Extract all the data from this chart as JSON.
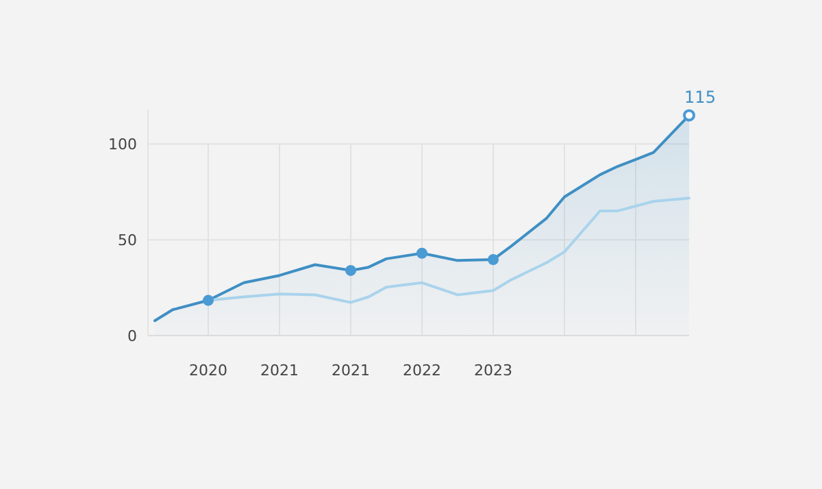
{
  "chart_data": {
    "type": "line",
    "ylim": [
      0,
      118
    ],
    "categories": [
      null,
      null,
      null,
      "2020",
      null,
      null,
      null,
      "2021",
      null,
      null,
      null,
      "2021",
      null,
      null,
      null,
      "2022",
      null,
      null,
      null,
      "2023",
      null,
      null,
      null,
      null,
      null,
      null,
      null,
      null,
      null,
      null,
      null
    ],
    "yticks": [
      0,
      50,
      100
    ],
    "grid": true,
    "series": [
      {
        "type": "area",
        "color": "#3f8fc4",
        "values": [
          7.8,
          13.5,
          null,
          18.4,
          null,
          27.6,
          null,
          31.4,
          null,
          37,
          null,
          34,
          35.7,
          40.1,
          null,
          43,
          null,
          39.2,
          null,
          39.7,
          46.6,
          null,
          61.3,
          72.4,
          null,
          84,
          88.4,
          91.9,
          95.6,
          null,
          115
        ]
      },
      {
        "color": "#a9d3ec",
        "values": [
          null,
          null,
          null,
          18.4,
          null,
          20.2,
          null,
          21.7,
          null,
          21.3,
          null,
          17.3,
          20.2,
          25.3,
          null,
          27.6,
          null,
          21.3,
          null,
          23.5,
          29.1,
          null,
          38.1,
          43.7,
          null,
          65.1,
          65.1,
          null,
          70.1,
          null,
          71.8
        ]
      },
      {
        "type": "scatter",
        "color": "#4a9ad4",
        "marker": "circle",
        "values": [
          null,
          null,
          null,
          18.4,
          null,
          null,
          null,
          null,
          null,
          null,
          null,
          34,
          null,
          null,
          null,
          43,
          null,
          null,
          null,
          39.7,
          null,
          null,
          null,
          null,
          null,
          null,
          null,
          null,
          null,
          null,
          115
        ]
      }
    ],
    "annotations": [
      "115"
    ]
  }
}
